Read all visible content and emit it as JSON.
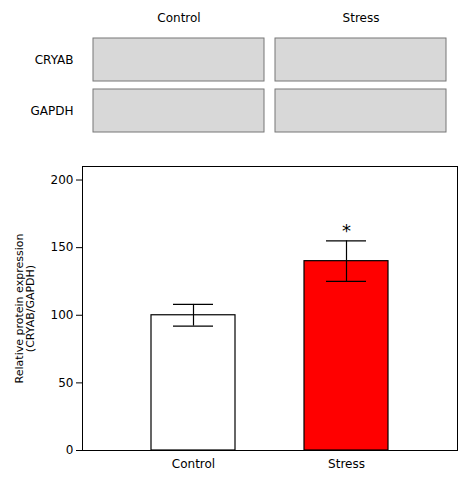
{
  "chart_data": {
    "type": "bar",
    "categories": [
      "Control",
      "Stress"
    ],
    "values": [
      100,
      140
    ],
    "errors": [
      8,
      15
    ],
    "colors": [
      "#ffffff",
      "#ff0000"
    ],
    "ylabel": "Relative protein expression\n(CRYAB/GAPDH)",
    "ylim": [
      0,
      210
    ],
    "yticks": [
      0,
      50,
      100,
      150,
      200
    ],
    "annotations": [
      {
        "text": "*",
        "category": "Stress"
      }
    ],
    "blot_columns": [
      "Control",
      "Stress"
    ],
    "blot_rows": [
      "CRYAB",
      "GAPDH"
    ]
  }
}
